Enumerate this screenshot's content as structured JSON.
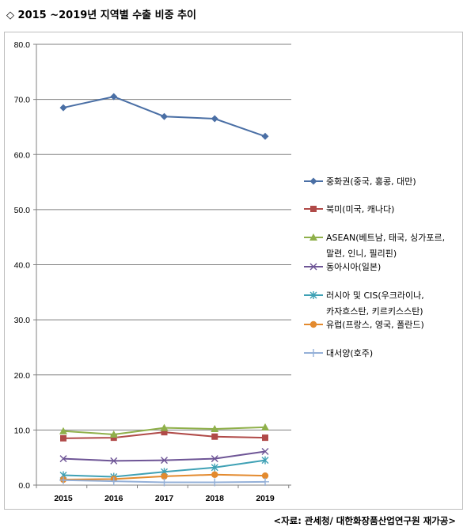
{
  "title": "◇ 2015 ~2019년 지역별 수출 비중 추이",
  "source": "<자료: 관세청/ 대한화장품산업연구원 재가공>",
  "chart_data": {
    "type": "line",
    "x": [
      "2015",
      "2016",
      "2017",
      "2018",
      "2019"
    ],
    "ylim": [
      0,
      80
    ],
    "yticks": [
      "0.0",
      "10.0",
      "20.0",
      "30.0",
      "40.0",
      "50.0",
      "60.0",
      "70.0",
      "80.0"
    ],
    "grid": true,
    "legend_position": "right",
    "series": [
      {
        "name": "중화권(중국, 홍콩, 대만)",
        "legend_lines": [
          "중화권(중국, 홍콩, 대만)"
        ],
        "color": "#4a6fa5",
        "marker": "diamond",
        "values": [
          68.5,
          70.5,
          66.9,
          66.5,
          63.3
        ]
      },
      {
        "name": "북미(미국, 캐나다)",
        "legend_lines": [
          "북미(미국, 캐나다)"
        ],
        "color": "#b04a48",
        "marker": "square",
        "values": [
          8.5,
          8.6,
          9.6,
          8.8,
          8.6
        ]
      },
      {
        "name": "ASEAN(베트남, 태국, 싱가포르, 말련, 인니, 필리핀)",
        "legend_lines": [
          "ASEAN(베트남, 태국, 싱가포르,",
          "말련, 인니, 필리핀)"
        ],
        "color": "#8fb04a",
        "marker": "triangle",
        "values": [
          9.8,
          9.2,
          10.4,
          10.2,
          10.5
        ]
      },
      {
        "name": "동아시아(일본)",
        "legend_lines": [
          "동아시아(일본)"
        ],
        "color": "#6e5596",
        "marker": "x",
        "values": [
          4.8,
          4.4,
          4.5,
          4.8,
          6.1
        ]
      },
      {
        "name": "러시아 및 CIS(우크라이나, 카자흐스탄, 키르키스스탄)",
        "legend_lines": [
          "러시아 및 CIS(우크라이나,",
          "카자흐스탄, 키르키스스탄)"
        ],
        "color": "#3fa1b5",
        "marker": "star",
        "values": [
          1.8,
          1.5,
          2.4,
          3.2,
          4.5
        ]
      },
      {
        "name": "유럽(프랑스, 영국, 폴란드)",
        "legend_lines": [
          "유럽(프랑스, 영국, 폴란드)"
        ],
        "color": "#e38a2e",
        "marker": "circle",
        "values": [
          1.0,
          1.1,
          1.6,
          1.9,
          1.7
        ]
      },
      {
        "name": "대서양(호주)",
        "legend_lines": [
          "대서양(호주)"
        ],
        "color": "#94b0d8",
        "marker": "plus",
        "values": [
          0.9,
          0.7,
          0.5,
          0.5,
          0.6
        ]
      }
    ]
  }
}
